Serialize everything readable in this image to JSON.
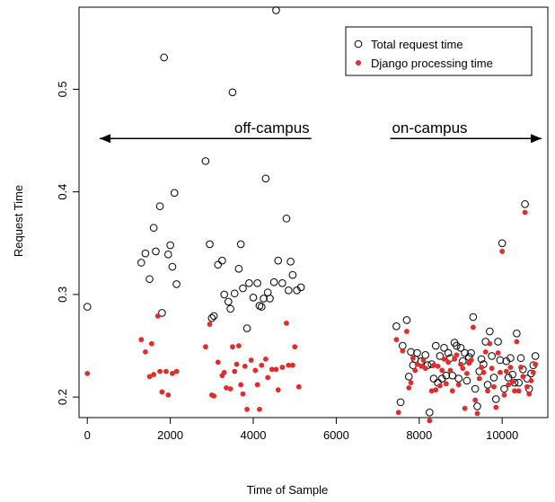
{
  "chart_data": {
    "type": "scatter",
    "xlabel": "Time of Sample",
    "ylabel": "Request Time",
    "xlim": [
      -200,
      11100
    ],
    "ylim": [
      0.18,
      0.58
    ],
    "x_ticks": [
      0,
      2000,
      4000,
      6000,
      8000,
      10000
    ],
    "y_ticks": [
      0.2,
      0.3,
      0.4,
      0.5
    ],
    "grid": false,
    "legend_position": "top-right",
    "legend": [
      {
        "label": "Total request time",
        "marker": "open-circle",
        "color": "#000000"
      },
      {
        "label": "Django processing time",
        "marker": "filled-dot",
        "color": "#e32b2b"
      }
    ],
    "annotations": [
      {
        "text": "off-campus",
        "arrow_from_x": 300,
        "arrow_to_x": 5400,
        "arrow_y": 0.452,
        "arrowhead": "left"
      },
      {
        "text": "on-campus",
        "arrow_from_x": 7300,
        "arrow_to_x": 10950,
        "arrow_y": 0.452,
        "arrowhead": "right"
      }
    ],
    "series": [
      {
        "name": "Total request time",
        "color": "#000000",
        "points": [
          [
            0,
            0.288
          ],
          [
            1300,
            0.331
          ],
          [
            1400,
            0.34
          ],
          [
            1500,
            0.315
          ],
          [
            1600,
            0.365
          ],
          [
            1650,
            0.342
          ],
          [
            1750,
            0.386
          ],
          [
            1800,
            0.282
          ],
          [
            1850,
            0.531
          ],
          [
            1950,
            0.339
          ],
          [
            2000,
            0.348
          ],
          [
            2050,
            0.327
          ],
          [
            2100,
            0.399
          ],
          [
            2150,
            0.31
          ],
          [
            2850,
            0.43
          ],
          [
            2950,
            0.349
          ],
          [
            3000,
            0.277
          ],
          [
            3050,
            0.279
          ],
          [
            3150,
            0.329
          ],
          [
            3250,
            0.333
          ],
          [
            3300,
            0.3
          ],
          [
            3400,
            0.293
          ],
          [
            3450,
            0.286
          ],
          [
            3500,
            0.497
          ],
          [
            3550,
            0.301
          ],
          [
            3650,
            0.325
          ],
          [
            3700,
            0.349
          ],
          [
            3750,
            0.306
          ],
          [
            3850,
            0.267
          ],
          [
            3900,
            0.311
          ],
          [
            4000,
            0.297
          ],
          [
            4100,
            0.311
          ],
          [
            4150,
            0.289
          ],
          [
            4200,
            0.288
          ],
          [
            4250,
            0.296
          ],
          [
            4300,
            0.413
          ],
          [
            4350,
            0.302
          ],
          [
            4400,
            0.296
          ],
          [
            4500,
            0.312
          ],
          [
            4550,
            0.577
          ],
          [
            4600,
            0.333
          ],
          [
            4700,
            0.311
          ],
          [
            4800,
            0.374
          ],
          [
            4850,
            0.304
          ],
          [
            4900,
            0.332
          ],
          [
            4950,
            0.319
          ],
          [
            5050,
            0.304
          ],
          [
            5150,
            0.307
          ],
          [
            7450,
            0.269
          ],
          [
            7550,
            0.195
          ],
          [
            7600,
            0.25
          ],
          [
            7700,
            0.275
          ],
          [
            7750,
            0.22
          ],
          [
            7800,
            0.244
          ],
          [
            7850,
            0.231
          ],
          [
            7900,
            0.237
          ],
          [
            7950,
            0.243
          ],
          [
            8050,
            0.235
          ],
          [
            8150,
            0.241
          ],
          [
            8200,
            0.231
          ],
          [
            8250,
            0.185
          ],
          [
            8300,
            0.232
          ],
          [
            8350,
            0.218
          ],
          [
            8400,
            0.25
          ],
          [
            8450,
            0.214
          ],
          [
            8500,
            0.24
          ],
          [
            8550,
            0.218
          ],
          [
            8600,
            0.248
          ],
          [
            8650,
            0.221
          ],
          [
            8700,
            0.243
          ],
          [
            8750,
            0.238
          ],
          [
            8800,
            0.221
          ],
          [
            8850,
            0.253
          ],
          [
            8900,
            0.25
          ],
          [
            8950,
            0.218
          ],
          [
            9000,
            0.248
          ],
          [
            9050,
            0.235
          ],
          [
            9100,
            0.243
          ],
          [
            9150,
            0.216
          ],
          [
            9200,
            0.239
          ],
          [
            9250,
            0.243
          ],
          [
            9300,
            0.278
          ],
          [
            9350,
            0.208
          ],
          [
            9400,
            0.191
          ],
          [
            9450,
            0.225
          ],
          [
            9500,
            0.237
          ],
          [
            9550,
            0.232
          ],
          [
            9600,
            0.254
          ],
          [
            9650,
            0.212
          ],
          [
            9700,
            0.264
          ],
          [
            9750,
            0.24
          ],
          [
            9800,
            0.219
          ],
          [
            9850,
            0.198
          ],
          [
            9900,
            0.254
          ],
          [
            9950,
            0.236
          ],
          [
            10000,
            0.35
          ],
          [
            10050,
            0.208
          ],
          [
            10100,
            0.235
          ],
          [
            10150,
            0.219
          ],
          [
            10200,
            0.238
          ],
          [
            10250,
            0.222
          ],
          [
            10300,
            0.214
          ],
          [
            10350,
            0.262
          ],
          [
            10400,
            0.214
          ],
          [
            10450,
            0.238
          ],
          [
            10500,
            0.227
          ],
          [
            10550,
            0.388
          ],
          [
            10600,
            0.218
          ],
          [
            10650,
            0.208
          ],
          [
            10700,
            0.223
          ],
          [
            10750,
            0.231
          ],
          [
            10800,
            0.24
          ]
        ]
      },
      {
        "name": "Django processing time",
        "color": "#e32b2b",
        "points": [
          [
            0,
            0.223
          ],
          [
            1300,
            0.256
          ],
          [
            1400,
            0.244
          ],
          [
            1500,
            0.22
          ],
          [
            1550,
            0.252
          ],
          [
            1600,
            0.222
          ],
          [
            1700,
            0.279
          ],
          [
            1750,
            0.225
          ],
          [
            1800,
            0.205
          ],
          [
            1900,
            0.225
          ],
          [
            1950,
            0.202
          ],
          [
            2050,
            0.223
          ],
          [
            2150,
            0.225
          ],
          [
            2850,
            0.249
          ],
          [
            2950,
            0.271
          ],
          [
            3000,
            0.202
          ],
          [
            3050,
            0.201
          ],
          [
            3150,
            0.234
          ],
          [
            3250,
            0.221
          ],
          [
            3300,
            0.224
          ],
          [
            3350,
            0.209
          ],
          [
            3450,
            0.208
          ],
          [
            3500,
            0.249
          ],
          [
            3550,
            0.225
          ],
          [
            3600,
            0.232
          ],
          [
            3650,
            0.25
          ],
          [
            3700,
            0.212
          ],
          [
            3750,
            0.203
          ],
          [
            3800,
            0.23
          ],
          [
            3850,
            0.188
          ],
          [
            3950,
            0.236
          ],
          [
            4050,
            0.226
          ],
          [
            4100,
            0.212
          ],
          [
            4150,
            0.188
          ],
          [
            4200,
            0.231
          ],
          [
            4300,
            0.237
          ],
          [
            4350,
            0.219
          ],
          [
            4450,
            0.227
          ],
          [
            4550,
            0.227
          ],
          [
            4600,
            0.207
          ],
          [
            4700,
            0.229
          ],
          [
            4800,
            0.272
          ],
          [
            4850,
            0.231
          ],
          [
            4950,
            0.231
          ],
          [
            5000,
            0.249
          ],
          [
            5100,
            0.21
          ],
          [
            7450,
            0.256
          ],
          [
            7500,
            0.185
          ],
          [
            7600,
            0.245
          ],
          [
            7700,
            0.264
          ],
          [
            7750,
            0.209
          ],
          [
            7800,
            0.214
          ],
          [
            7850,
            0.238
          ],
          [
            7900,
            0.226
          ],
          [
            7950,
            0.232
          ],
          [
            8050,
            0.23
          ],
          [
            8100,
            0.236
          ],
          [
            8150,
            0.228
          ],
          [
            8250,
            0.177
          ],
          [
            8300,
            0.206
          ],
          [
            8350,
            0.231
          ],
          [
            8400,
            0.207
          ],
          [
            8450,
            0.23
          ],
          [
            8500,
            0.211
          ],
          [
            8550,
            0.226
          ],
          [
            8600,
            0.237
          ],
          [
            8650,
            0.213
          ],
          [
            8700,
            0.234
          ],
          [
            8750,
            0.226
          ],
          [
            8800,
            0.206
          ],
          [
            8850,
            0.237
          ],
          [
            8900,
            0.241
          ],
          [
            8950,
            0.212
          ],
          [
            9000,
            0.232
          ],
          [
            9050,
            0.228
          ],
          [
            9100,
            0.189
          ],
          [
            9150,
            0.223
          ],
          [
            9200,
            0.233
          ],
          [
            9250,
            0.236
          ],
          [
            9300,
            0.268
          ],
          [
            9350,
            0.197
          ],
          [
            9400,
            0.184
          ],
          [
            9450,
            0.218
          ],
          [
            9500,
            0.229
          ],
          [
            9550,
            0.224
          ],
          [
            9600,
            0.244
          ],
          [
            9650,
            0.206
          ],
          [
            9700,
            0.252
          ],
          [
            9750,
            0.228
          ],
          [
            9800,
            0.21
          ],
          [
            9850,
            0.19
          ],
          [
            9900,
            0.243
          ],
          [
            9950,
            0.224
          ],
          [
            10000,
            0.342
          ],
          [
            10050,
            0.202
          ],
          [
            10100,
            0.225
          ],
          [
            10150,
            0.212
          ],
          [
            10200,
            0.229
          ],
          [
            10250,
            0.215
          ],
          [
            10300,
            0.206
          ],
          [
            10350,
            0.254
          ],
          [
            10400,
            0.206
          ],
          [
            10450,
            0.229
          ],
          [
            10500,
            0.22
          ],
          [
            10550,
            0.38
          ],
          [
            10600,
            0.21
          ],
          [
            10650,
            0.203
          ],
          [
            10700,
            0.216
          ],
          [
            10750,
            0.224
          ],
          [
            10800,
            0.232
          ]
        ]
      }
    ]
  }
}
